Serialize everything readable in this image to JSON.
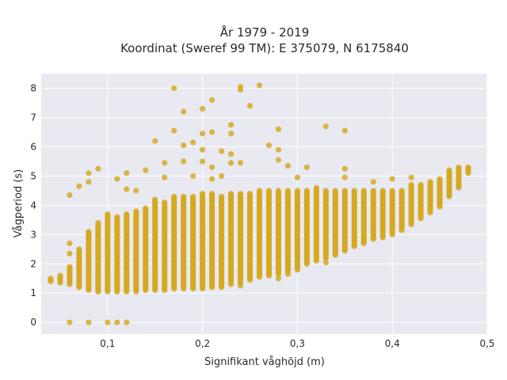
{
  "chart_data": {
    "type": "scatter",
    "title_line1": "År 1979 - 2019",
    "title_line2": "Koordinat (Sweref 99 TM): E 375079, N 6175840",
    "xlabel": "Signifikant våghöjd (m)",
    "ylabel": "Vågperiod (s)",
    "xlim": [
      0.03,
      0.5
    ],
    "ylim": [
      -0.4,
      8.5
    ],
    "xticks": [
      0.1,
      0.2,
      0.3,
      0.4,
      0.5
    ],
    "xtick_labels": [
      "0,1",
      "0,2",
      "0,3",
      "0,4",
      "0,5"
    ],
    "yticks": [
      0,
      1,
      2,
      3,
      4,
      5,
      6,
      7,
      8
    ],
    "ytick_labels": [
      "0",
      "1",
      "2",
      "3",
      "4",
      "5",
      "6",
      "7",
      "8"
    ],
    "grid": true,
    "marker_color": "#D4A820",
    "background": "#E9E9F1",
    "bands": [
      [
        0.04,
        1.4,
        1.5
      ],
      [
        0.05,
        1.35,
        1.6
      ],
      [
        0.06,
        1.3,
        1.9
      ],
      [
        0.07,
        1.2,
        2.5
      ],
      [
        0.08,
        1.1,
        3.1
      ],
      [
        0.09,
        1.05,
        3.4
      ],
      [
        0.1,
        1.05,
        3.7
      ],
      [
        0.11,
        1.05,
        3.6
      ],
      [
        0.12,
        1.05,
        3.7
      ],
      [
        0.13,
        1.05,
        3.8
      ],
      [
        0.14,
        1.1,
        3.9
      ],
      [
        0.15,
        1.1,
        4.2
      ],
      [
        0.16,
        1.1,
        4.1
      ],
      [
        0.17,
        1.15,
        4.3
      ],
      [
        0.18,
        1.15,
        4.3
      ],
      [
        0.19,
        1.15,
        4.3
      ],
      [
        0.2,
        1.15,
        4.4
      ],
      [
        0.21,
        1.2,
        4.4
      ],
      [
        0.22,
        1.2,
        4.3
      ],
      [
        0.23,
        1.3,
        4.4
      ],
      [
        0.24,
        1.35,
        4.4
      ],
      [
        0.25,
        1.45,
        4.4
      ],
      [
        0.26,
        1.55,
        4.5
      ],
      [
        0.27,
        1.6,
        4.5
      ],
      [
        0.28,
        1.65,
        4.5
      ],
      [
        0.29,
        1.75,
        4.5
      ],
      [
        0.3,
        1.8,
        4.5
      ],
      [
        0.31,
        2.0,
        4.5
      ],
      [
        0.32,
        2.1,
        4.6
      ],
      [
        0.33,
        2.2,
        4.5
      ],
      [
        0.34,
        2.3,
        4.5
      ],
      [
        0.35,
        2.45,
        4.5
      ],
      [
        0.36,
        2.6,
        4.5
      ],
      [
        0.37,
        2.7,
        4.5
      ],
      [
        0.38,
        2.85,
        4.5
      ],
      [
        0.39,
        2.9,
        4.5
      ],
      [
        0.4,
        3.0,
        4.5
      ],
      [
        0.41,
        3.15,
        4.5
      ],
      [
        0.42,
        3.35,
        4.7
      ],
      [
        0.43,
        3.55,
        4.7
      ],
      [
        0.44,
        3.75,
        4.8
      ],
      [
        0.45,
        3.95,
        4.9
      ],
      [
        0.46,
        4.3,
        5.2
      ],
      [
        0.47,
        4.6,
        5.3
      ],
      [
        0.48,
        5.1,
        5.3
      ]
    ],
    "outliers": [
      [
        0.06,
        0.0
      ],
      [
        0.08,
        0.0
      ],
      [
        0.1,
        0.0
      ],
      [
        0.11,
        0.0
      ],
      [
        0.12,
        0.0
      ],
      [
        0.06,
        4.35
      ],
      [
        0.06,
        2.7
      ],
      [
        0.06,
        2.35
      ],
      [
        0.07,
        4.65
      ],
      [
        0.08,
        5.1
      ],
      [
        0.09,
        5.25
      ],
      [
        0.08,
        4.8
      ],
      [
        0.11,
        4.9
      ],
      [
        0.12,
        5.1
      ],
      [
        0.12,
        4.55
      ],
      [
        0.13,
        4.5
      ],
      [
        0.14,
        5.2
      ],
      [
        0.15,
        6.2
      ],
      [
        0.16,
        5.45
      ],
      [
        0.16,
        4.95
      ],
      [
        0.17,
        8.0
      ],
      [
        0.17,
        6.55
      ],
      [
        0.18,
        7.2
      ],
      [
        0.18,
        6.05
      ],
      [
        0.18,
        5.5
      ],
      [
        0.19,
        6.15
      ],
      [
        0.19,
        5.0
      ],
      [
        0.2,
        7.3
      ],
      [
        0.2,
        6.45
      ],
      [
        0.2,
        5.9
      ],
      [
        0.2,
        5.5
      ],
      [
        0.21,
        7.6
      ],
      [
        0.21,
        6.5
      ],
      [
        0.21,
        5.3
      ],
      [
        0.21,
        4.9
      ],
      [
        0.22,
        5.85
      ],
      [
        0.22,
        5.0
      ],
      [
        0.23,
        6.75
      ],
      [
        0.23,
        6.45
      ],
      [
        0.23,
        5.75
      ],
      [
        0.23,
        5.45
      ],
      [
        0.24,
        8.05
      ],
      [
        0.24,
        7.95
      ],
      [
        0.24,
        5.45
      ],
      [
        0.25,
        7.4
      ],
      [
        0.26,
        8.1
      ],
      [
        0.27,
        6.05
      ],
      [
        0.28,
        6.6
      ],
      [
        0.28,
        5.9
      ],
      [
        0.28,
        5.55
      ],
      [
        0.29,
        5.35
      ],
      [
        0.3,
        4.95
      ],
      [
        0.31,
        5.3
      ],
      [
        0.33,
        6.7
      ],
      [
        0.35,
        6.55
      ],
      [
        0.35,
        5.25
      ],
      [
        0.35,
        4.95
      ],
      [
        0.38,
        4.8
      ],
      [
        0.4,
        4.9
      ],
      [
        0.42,
        4.95
      ],
      [
        0.24,
        1.25
      ],
      [
        0.28,
        1.5
      ],
      [
        0.29,
        1.65
      ],
      [
        0.33,
        2.05
      ],
      [
        0.36,
        2.65
      ]
    ]
  }
}
